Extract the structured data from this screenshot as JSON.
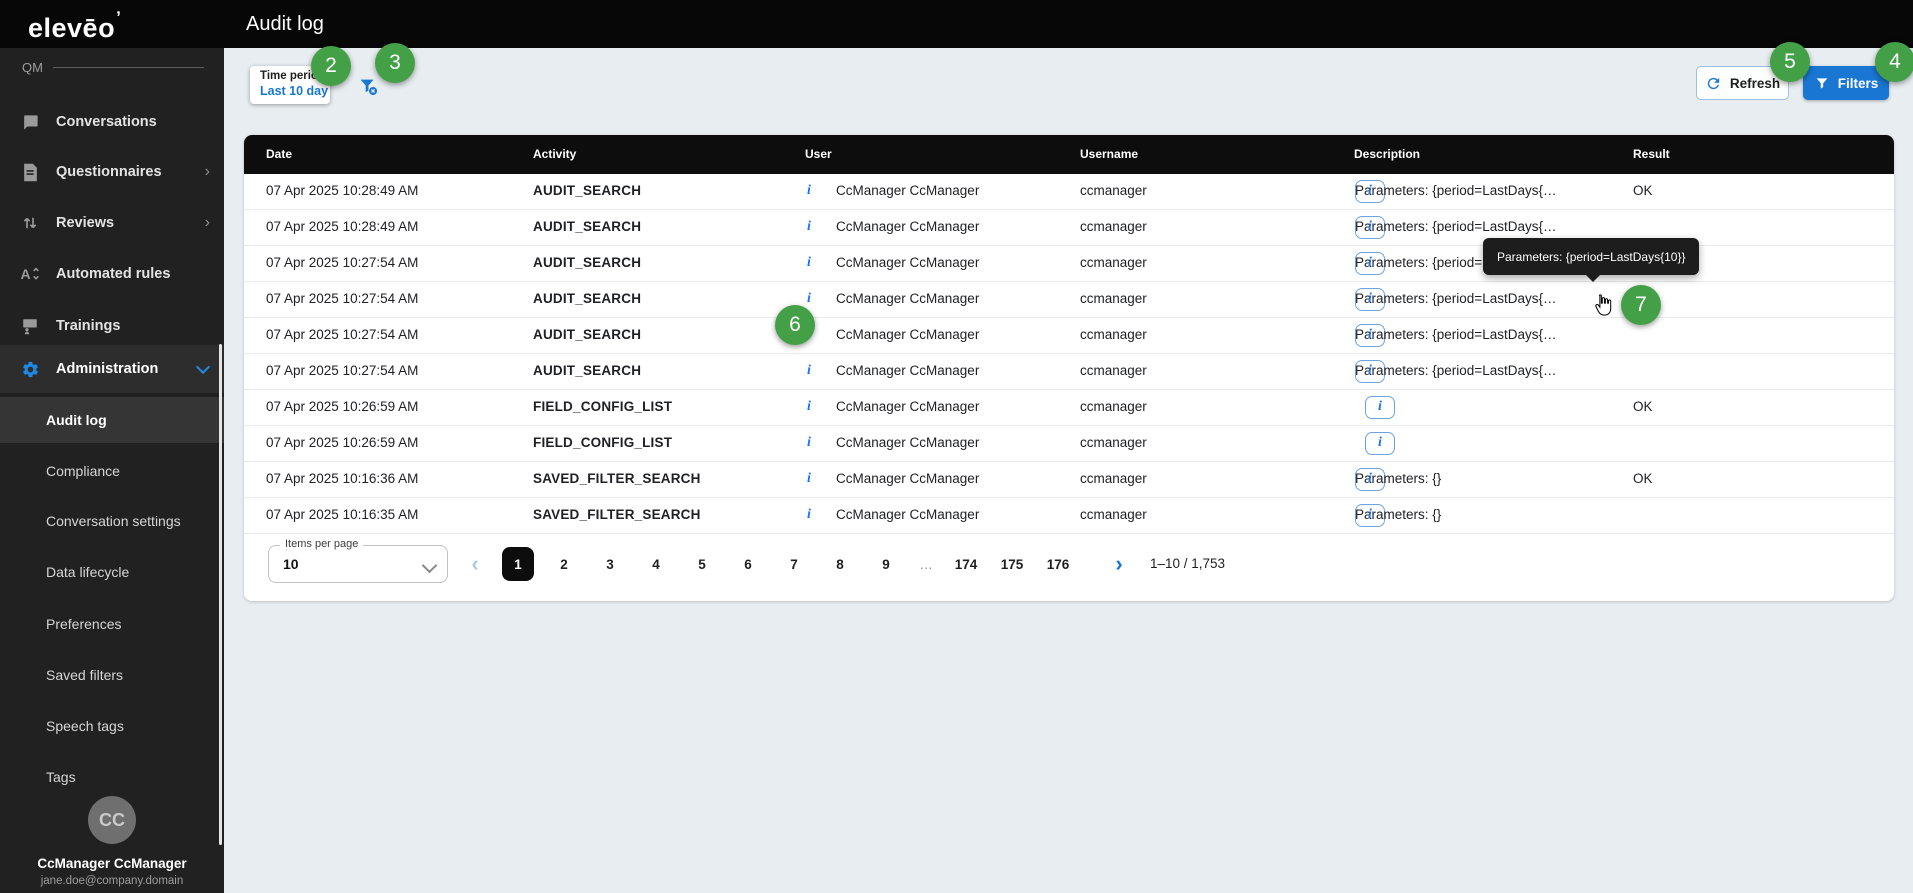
{
  "app": {
    "logo_text": "elevēo",
    "logo_mark": "ʼ",
    "workspace_label": "QM",
    "page_title": "Audit log"
  },
  "sidebar": {
    "items": [
      {
        "label": "Conversations"
      },
      {
        "label": "Questionnaires"
      },
      {
        "label": "Reviews"
      },
      {
        "label": "Automated rules"
      },
      {
        "label": "Trainings"
      },
      {
        "label": "Administration"
      }
    ],
    "admin_subitems": [
      {
        "label": "Audit log"
      },
      {
        "label": "Compliance"
      },
      {
        "label": "Conversation settings"
      },
      {
        "label": "Data lifecycle"
      },
      {
        "label": "Preferences"
      },
      {
        "label": "Saved filters"
      },
      {
        "label": "Speech tags"
      },
      {
        "label": "Tags"
      }
    ],
    "user": {
      "initials": "CC",
      "name": "CcManager CcManager",
      "email": "jane.doe@company.domain"
    }
  },
  "toolbar": {
    "time_period_label": "Time period",
    "time_period_value": "Last 10 day",
    "refresh_label": "Refresh",
    "filters_label": "Filters"
  },
  "table": {
    "columns": [
      "Date",
      "Activity",
      "User",
      "Username",
      "Description",
      "Result"
    ],
    "rows": [
      {
        "date": "07 Apr 2025 10:28:49 AM",
        "activity": "AUDIT_SEARCH",
        "user": "CcManager CcManager",
        "username": "ccmanager",
        "description": "Parameters: {period=LastDays{…",
        "result": "OK"
      },
      {
        "date": "07 Apr 2025 10:28:49 AM",
        "activity": "AUDIT_SEARCH",
        "user": "CcManager CcManager",
        "username": "ccmanager",
        "description": "Parameters: {period=LastDays{…",
        "result": ""
      },
      {
        "date": "07 Apr 2025 10:27:54 AM",
        "activity": "AUDIT_SEARCH",
        "user": "CcManager CcManager",
        "username": "ccmanager",
        "description": "Parameters: {period=LastDays{…",
        "result": ""
      },
      {
        "date": "07 Apr 2025 10:27:54 AM",
        "activity": "AUDIT_SEARCH",
        "user": "CcManager CcManager",
        "username": "ccmanager",
        "description": "Parameters: {period=LastDays{…",
        "result": ""
      },
      {
        "date": "07 Apr 2025 10:27:54 AM",
        "activity": "AUDIT_SEARCH",
        "user": "CcManager CcManager",
        "username": "ccmanager",
        "description": "Parameters: {period=LastDays{…",
        "result": ""
      },
      {
        "date": "07 Apr 2025 10:27:54 AM",
        "activity": "AUDIT_SEARCH",
        "user": "CcManager CcManager",
        "username": "ccmanager",
        "description": "Parameters: {period=LastDays{…",
        "result": ""
      },
      {
        "date": "07 Apr 2025 10:26:59 AM",
        "activity": "FIELD_CONFIG_LIST",
        "user": "CcManager CcManager",
        "username": "ccmanager",
        "description": "",
        "result": "OK"
      },
      {
        "date": "07 Apr 2025 10:26:59 AM",
        "activity": "FIELD_CONFIG_LIST",
        "user": "CcManager CcManager",
        "username": "ccmanager",
        "description": "",
        "result": ""
      },
      {
        "date": "07 Apr 2025 10:16:36 AM",
        "activity": "SAVED_FILTER_SEARCH",
        "user": "CcManager CcManager",
        "username": "ccmanager",
        "description": "Parameters: {}",
        "result": "OK"
      },
      {
        "date": "07 Apr 2025 10:16:35 AM",
        "activity": "SAVED_FILTER_SEARCH",
        "user": "CcManager CcManager",
        "username": "ccmanager",
        "description": "Parameters: {}",
        "result": ""
      }
    ]
  },
  "tooltip": {
    "text": "Parameters: {period=LastDays{10}}"
  },
  "pagination": {
    "items_per_page_label": "Items per page",
    "items_per_page_value": "10",
    "pages": [
      "1",
      "2",
      "3",
      "4",
      "5",
      "6",
      "7",
      "8",
      "9",
      "…",
      "174",
      "175",
      "176"
    ],
    "active_page": "1",
    "range_label": "1–10 / 1,753",
    "prev_glyph": "‹",
    "next_glyph": "›"
  },
  "icons": {
    "info_glyph": "i",
    "chevron_right": "›"
  },
  "annotations": {
    "badges": [
      "2",
      "3",
      "4",
      "5",
      "6",
      "7"
    ]
  },
  "colors": {
    "accent_blue": "#1976d2",
    "badge_green": "#43a047",
    "topbar_black": "#070707",
    "sidebar_dark": "#212121",
    "content_bg": "#e7edf0",
    "table_header_black": "#0d0d0d"
  }
}
